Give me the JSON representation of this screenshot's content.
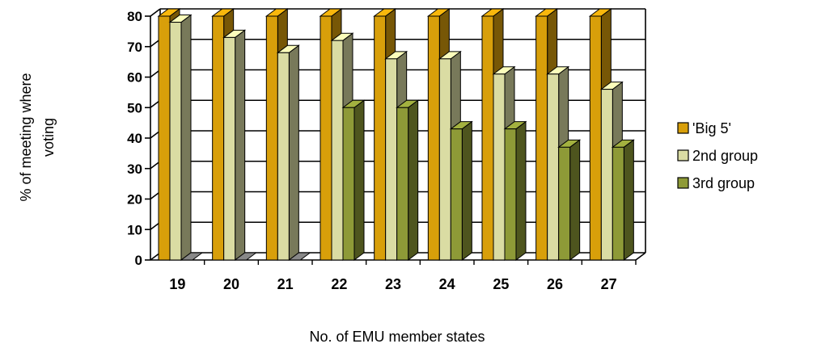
{
  "chart_data": {
    "type": "bar",
    "title": "",
    "xlabel": "No. of EMU member states",
    "ylabel_lines": [
      "% of meeting where",
      "voting"
    ],
    "categories": [
      "19",
      "20",
      "21",
      "22",
      "23",
      "24",
      "25",
      "26",
      "27"
    ],
    "series": [
      {
        "name": "'Big 5'",
        "values": [
          80,
          80,
          80,
          80,
          80,
          80,
          80,
          80,
          80
        ],
        "color": "#D89F0A"
      },
      {
        "name": "2nd group",
        "values": [
          78,
          73,
          68,
          72,
          66,
          66,
          61,
          61,
          56
        ],
        "color": "#DADCA3"
      },
      {
        "name": "3rd group",
        "values": [
          0,
          0,
          0,
          50,
          50,
          43,
          43,
          37,
          37
        ],
        "color": "#8E9A37"
      }
    ],
    "ylim": [
      0,
      80
    ],
    "yticks": [
      0,
      10,
      20,
      30,
      40,
      50,
      60,
      70,
      80
    ],
    "grid": true,
    "legend_position": "right",
    "style": "3d"
  }
}
